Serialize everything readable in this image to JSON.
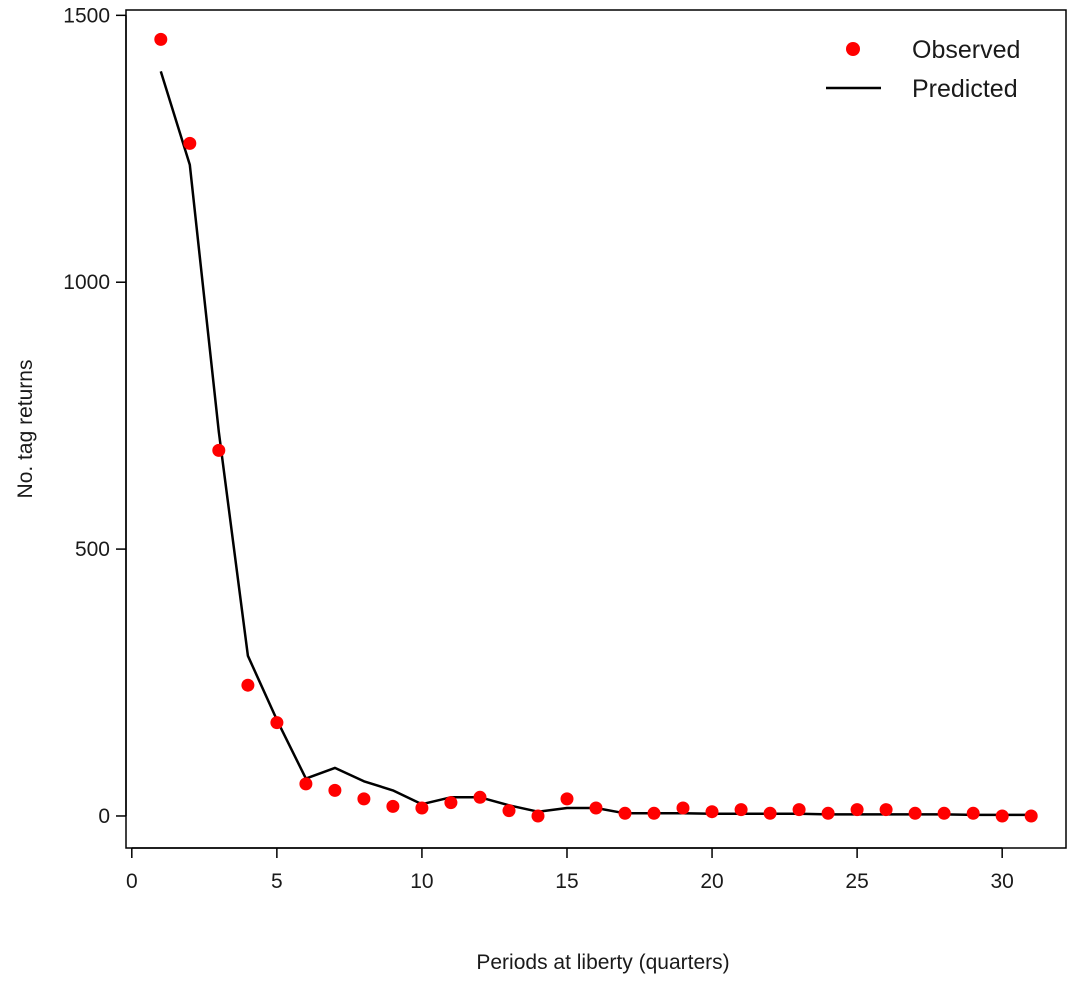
{
  "chart_data": {
    "type": "scatter",
    "title": "",
    "xlabel": "Periods at liberty (quarters)",
    "ylabel": "No. tag returns",
    "xlim": [
      -0.2,
      32.2
    ],
    "ylim": [
      -60,
      1510
    ],
    "x_ticks": [
      0,
      5,
      10,
      15,
      20,
      25,
      30
    ],
    "y_ticks": [
      0,
      500,
      1000,
      1500
    ],
    "x_tick_labels": [
      "0",
      "5",
      "10",
      "15",
      "20",
      "25",
      "30"
    ],
    "y_tick_labels": [
      "0",
      "500",
      "1000",
      "1500"
    ],
    "grid": false,
    "legend_position": "top-right",
    "series": [
      {
        "name": "Observed",
        "style": "points",
        "color": "#ff0000",
        "x": [
          1,
          2,
          3,
          4,
          5,
          6,
          7,
          8,
          9,
          10,
          11,
          12,
          13,
          14,
          15,
          16,
          17,
          18,
          19,
          20,
          21,
          22,
          23,
          24,
          25,
          26,
          27,
          28,
          29,
          30,
          31
        ],
        "values": [
          1455,
          1260,
          685,
          245,
          175,
          60,
          48,
          32,
          18,
          15,
          25,
          35,
          10,
          0,
          32,
          15,
          5,
          5,
          15,
          8,
          12,
          5,
          12,
          5,
          12,
          12,
          5,
          5,
          5,
          0,
          0
        ]
      },
      {
        "name": "Predicted",
        "style": "line",
        "color": "#000000",
        "x": [
          1,
          2,
          3,
          4,
          5,
          6,
          7,
          8,
          9,
          10,
          11,
          12,
          13,
          14,
          15,
          16,
          17,
          18,
          19,
          20,
          21,
          22,
          23,
          24,
          25,
          26,
          27,
          28,
          29,
          30,
          31
        ],
        "values": [
          1395,
          1220,
          720,
          300,
          180,
          70,
          90,
          65,
          48,
          22,
          35,
          35,
          20,
          8,
          15,
          15,
          5,
          5,
          5,
          4,
          4,
          4,
          4,
          3,
          3,
          3,
          3,
          3,
          2,
          2,
          2
        ]
      }
    ]
  }
}
